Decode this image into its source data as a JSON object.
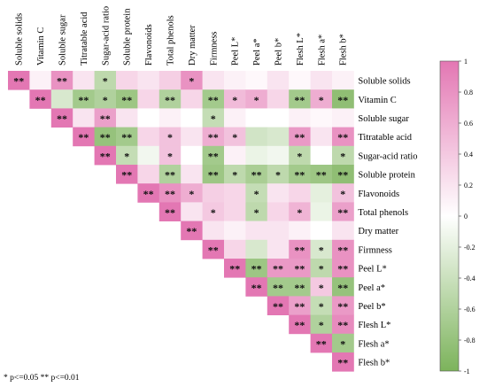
{
  "chart_data": {
    "type": "heatmap",
    "variables": [
      "Soluble solids",
      "Vitamin C",
      "Soluble sugar",
      "Titratable acid",
      "Sugar-acid ratio",
      "Soluble protein",
      "Flavonoids",
      "Total phenols",
      "Dry matter",
      "Firmness",
      "Peel L*",
      "Peel a*",
      "Peel b*",
      "Flesh L*",
      "Flesh a*",
      "Flesh b*"
    ],
    "values": [
      [
        1.0,
        0.1,
        0.8,
        0.2,
        -0.5,
        0.3,
        0.2,
        0.35,
        0.8,
        0.2,
        0.1,
        0.05,
        0.2,
        0.05,
        0.2,
        0.1
      ],
      [
        0.1,
        1.0,
        -0.3,
        -0.7,
        -0.6,
        -0.75,
        0.3,
        -0.6,
        0.3,
        -0.7,
        0.5,
        0.6,
        0.3,
        -0.7,
        0.6,
        -0.85
      ],
      [
        0.8,
        -0.3,
        1.0,
        0.2,
        0.7,
        0.2,
        0.0,
        0.1,
        0.0,
        -0.45,
        0.1,
        0.0,
        0.0,
        0.1,
        0.05,
        0.1
      ],
      [
        0.2,
        -0.7,
        0.2,
        1.0,
        -0.8,
        -0.7,
        0.3,
        0.45,
        0.2,
        0.6,
        0.45,
        -0.35,
        -0.3,
        0.75,
        0.2,
        0.8
      ],
      [
        -0.5,
        -0.6,
        0.7,
        -0.8,
        1.0,
        -0.45,
        -0.1,
        0.45,
        0.0,
        -0.7,
        0.1,
        -0.15,
        -0.1,
        -0.5,
        0.0,
        -0.5
      ],
      [
        0.3,
        -0.75,
        0.2,
        -0.7,
        -0.45,
        1.0,
        0.3,
        -0.6,
        0.2,
        -0.75,
        -0.5,
        -0.65,
        -0.5,
        -0.7,
        -0.75,
        -0.85
      ],
      [
        0.2,
        0.3,
        0.0,
        0.3,
        -0.1,
        0.3,
        1.0,
        0.8,
        0.6,
        0.35,
        0.3,
        -0.45,
        0.2,
        0.3,
        -0.2,
        0.45
      ],
      [
        0.35,
        -0.6,
        0.1,
        0.45,
        0.45,
        -0.6,
        0.8,
        1.0,
        0.2,
        0.4,
        0.3,
        -0.5,
        0.3,
        0.55,
        -0.15,
        0.7
      ],
      [
        0.8,
        0.3,
        0.0,
        0.2,
        0.0,
        0.2,
        0.6,
        0.2,
        1.0,
        0.2,
        0.1,
        0.2,
        0.2,
        0.1,
        0.0,
        0.2
      ],
      [
        0.2,
        -0.7,
        -0.45,
        0.6,
        -0.7,
        -0.75,
        0.35,
        0.4,
        0.2,
        1.0,
        0.3,
        -0.3,
        0.2,
        0.8,
        -0.3,
        0.8
      ],
      [
        0.1,
        0.5,
        0.1,
        0.45,
        0.1,
        -0.5,
        0.3,
        0.3,
        0.1,
        0.3,
        1.0,
        -0.75,
        0.75,
        0.75,
        -0.5,
        0.8
      ],
      [
        0.05,
        0.6,
        0.0,
        -0.35,
        -0.15,
        -0.65,
        -0.45,
        -0.5,
        0.2,
        -0.3,
        -0.75,
        1.0,
        -0.7,
        -0.7,
        0.4,
        -0.8
      ],
      [
        0.2,
        0.3,
        0.0,
        -0.3,
        -0.1,
        -0.5,
        0.2,
        0.3,
        0.2,
        0.2,
        0.75,
        -0.7,
        1.0,
        0.7,
        -0.45,
        0.75
      ],
      [
        0.05,
        -0.7,
        0.1,
        0.75,
        -0.5,
        -0.7,
        0.3,
        0.55,
        0.1,
        0.8,
        0.75,
        -0.7,
        0.7,
        1.0,
        -0.6,
        0.85
      ],
      [
        0.2,
        0.6,
        0.05,
        0.2,
        0.0,
        -0.75,
        -0.2,
        -0.15,
        0.0,
        -0.3,
        -0.5,
        0.4,
        -0.45,
        -0.6,
        1.0,
        -0.7
      ],
      [
        0.1,
        -0.85,
        0.1,
        0.8,
        -0.5,
        -0.85,
        0.45,
        0.7,
        0.2,
        0.8,
        0.8,
        -0.8,
        0.75,
        0.85,
        -0.7,
        1.0
      ]
    ],
    "significance": [
      [
        "**",
        "",
        "**",
        "",
        "*",
        "",
        "",
        "",
        "*",
        "",
        "",
        "",
        "",
        "",
        "",
        ""
      ],
      [
        "",
        "**",
        "",
        "**",
        "*",
        "**",
        "",
        "**",
        "",
        "**",
        "*",
        "*",
        "",
        "**",
        "*",
        "**"
      ],
      [
        "**",
        "",
        "**",
        "",
        "**",
        "",
        "",
        "",
        "",
        "*",
        "",
        "",
        "",
        "",
        "",
        ""
      ],
      [
        "",
        "**",
        "",
        "**",
        "**",
        "**",
        "",
        "*",
        "",
        "**",
        "*",
        "",
        "",
        "**",
        "",
        "**"
      ],
      [
        "*",
        "*",
        "**",
        "**",
        "**",
        "*",
        "",
        "*",
        "",
        "**",
        "",
        "",
        "",
        "*",
        "",
        "*"
      ],
      [
        "",
        "**",
        "",
        "**",
        "*",
        "**",
        "",
        "**",
        "",
        "**",
        "*",
        "**",
        "*",
        "**",
        "**",
        "**"
      ],
      [
        "",
        "",
        "",
        "",
        "",
        "",
        "**",
        "**",
        "*",
        "",
        "",
        "*",
        "",
        "",
        "",
        "*"
      ],
      [
        "",
        "**",
        "",
        "*",
        "*",
        "**",
        "**",
        "**",
        "",
        "*",
        "",
        "*",
        "",
        "*",
        "",
        "**"
      ],
      [
        "*",
        "",
        "",
        "",
        "",
        "",
        "*",
        "",
        "**",
        "",
        "",
        "",
        "",
        "",
        "",
        ""
      ],
      [
        "",
        "**",
        "*",
        "**",
        "**",
        "**",
        "",
        "*",
        "",
        "**",
        "",
        "",
        "",
        "**",
        "*",
        "**"
      ],
      [
        "",
        "*",
        "",
        "*",
        "",
        "*",
        "",
        "",
        "",
        "",
        "**",
        "**",
        "**",
        "**",
        "*",
        "**"
      ],
      [
        "",
        "*",
        "",
        "",
        "",
        "**",
        "*",
        "*",
        "",
        "",
        "**",
        "**",
        "**",
        "**",
        "*",
        "**"
      ],
      [
        "",
        "",
        "",
        "",
        "",
        "*",
        "",
        "",
        "",
        "",
        "**",
        "**",
        "**",
        "**",
        "*",
        "**"
      ],
      [
        "",
        "**",
        "",
        "**",
        "*",
        "**",
        "",
        "*",
        "",
        "**",
        "**",
        "**",
        "**",
        "**",
        "*",
        "**"
      ],
      [
        "",
        "*",
        "",
        "",
        "",
        "**",
        "",
        "",
        "",
        "*",
        "*",
        "*",
        "*",
        "*",
        "**",
        "*"
      ],
      [
        "",
        "**",
        "",
        "**",
        "*",
        "**",
        "*",
        "**",
        "",
        "**",
        "**",
        "**",
        "**",
        "**",
        "*",
        "**"
      ]
    ],
    "colorbar": {
      "range": [
        -1,
        1
      ],
      "ticks": [
        "1",
        "0.8",
        "0.6",
        "0.4",
        "0.2",
        "0",
        "-0.2",
        "-0.4",
        "-0.6",
        "-0.8",
        "-1"
      ],
      "positive_color": "#e377b3",
      "zero_color": "#ffffff",
      "negative_color": "#7cb35b"
    },
    "layout": "upper-triangle",
    "footnote": "* p<=0.05   ** p<=0.01"
  }
}
